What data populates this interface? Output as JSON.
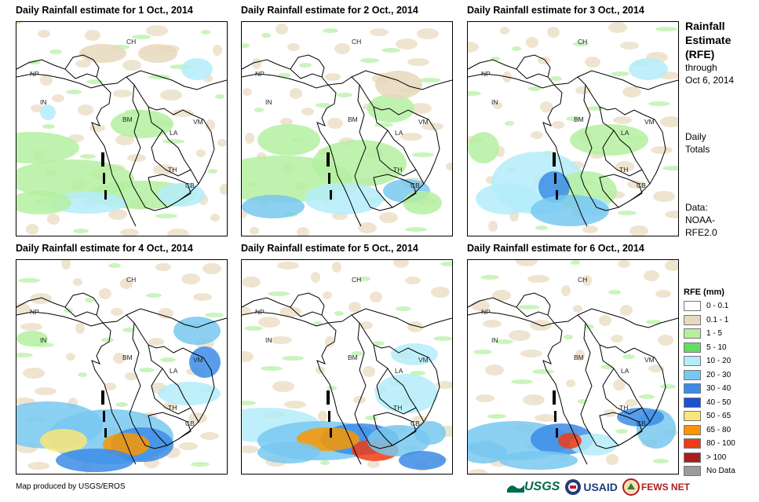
{
  "panels": [
    {
      "title": "Daily Rainfall estimate for 1 Oct., 2014"
    },
    {
      "title": "Daily Rainfall estimate for 2 Oct., 2014"
    },
    {
      "title": "Daily Rainfall estimate for 3 Oct., 2014"
    },
    {
      "title": "Daily Rainfall estimate for 4 Oct., 2014"
    },
    {
      "title": "Daily Rainfall estimate for 5 Oct., 2014"
    },
    {
      "title": "Daily Rainfall estimate for 6 Oct., 2014"
    }
  ],
  "country_labels": [
    "CH",
    "NP",
    "IN",
    "BM",
    "LA",
    "VM",
    "TH",
    "CB"
  ],
  "sidebar": {
    "title_line1": "Rainfall",
    "title_line2": "Estimate",
    "title_line3": "(RFE)",
    "through": "through",
    "through_date": "Oct 6, 2014",
    "daily": "Daily",
    "totals": "Totals",
    "data_label": "Data:",
    "data_source1": "NOAA-",
    "data_source2": "RFE2.0"
  },
  "legend": {
    "title": "RFE (mm)",
    "items": [
      {
        "label": "0 - 0.1",
        "color": "#ffffff"
      },
      {
        "label": "0.1 - 1",
        "color": "#e8d8bc"
      },
      {
        "label": "1 - 5",
        "color": "#b4f0a0"
      },
      {
        "label": "5 - 10",
        "color": "#64dc64"
      },
      {
        "label": "10 - 20",
        "color": "#b4ecfa"
      },
      {
        "label": "20 - 30",
        "color": "#78c8f0"
      },
      {
        "label": "30 - 40",
        "color": "#3c8ce6"
      },
      {
        "label": "40 - 50",
        "color": "#1e50d2"
      },
      {
        "label": "50 - 65",
        "color": "#fae678"
      },
      {
        "label": "65 - 80",
        "color": "#fa9600"
      },
      {
        "label": "80 - 100",
        "color": "#f03c14"
      },
      {
        "label": "> 100",
        "color": "#aa1e1e"
      },
      {
        "label": "No Data",
        "color": "#9b9b9b"
      }
    ]
  },
  "credit": "Map produced by USGS/EROS",
  "logos": {
    "usgs": "USGS",
    "usaid": "USAID",
    "fewsnet": "FEWS NET"
  }
}
